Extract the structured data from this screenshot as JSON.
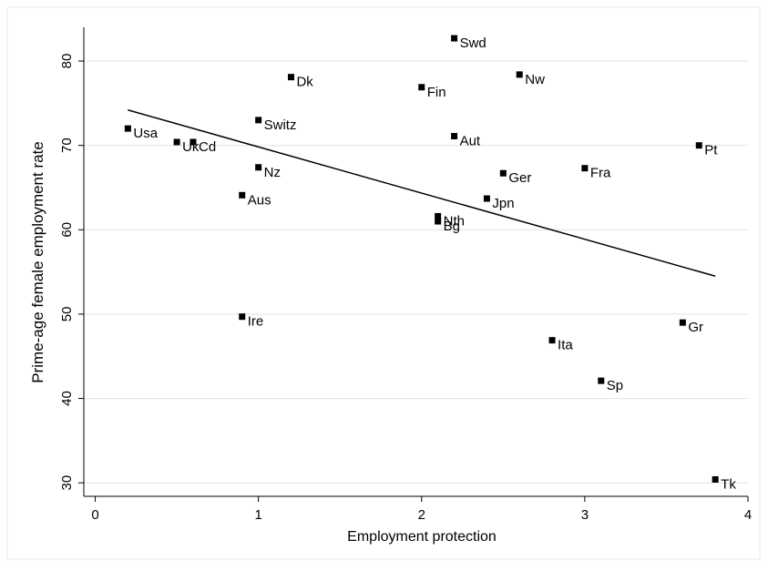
{
  "chart_data": {
    "type": "scatter",
    "x_label": "Employment protection",
    "y_label": "Prime-age female employment rate",
    "labels": [
      "Usa",
      "Uk",
      "Cd",
      "Dk",
      "Switz",
      "Nz",
      "Aus",
      "Ire",
      "Swd",
      "Fin",
      "Nw",
      "Aut",
      "Ger",
      "Fra",
      "Pt",
      "Jpn",
      "Nth",
      "Bg",
      "Ita",
      "Gr",
      "Sp",
      "Tk"
    ],
    "x": [
      0.2,
      0.5,
      0.6,
      1.2,
      1.0,
      1.0,
      0.9,
      0.9,
      2.2,
      2.0,
      2.6,
      2.2,
      2.5,
      3.0,
      3.7,
      2.4,
      2.1,
      2.1,
      2.8,
      3.6,
      3.1,
      3.8
    ],
    "values": [
      72.0,
      70.4,
      70.4,
      78.1,
      73.0,
      67.4,
      64.1,
      49.7,
      82.7,
      76.9,
      78.4,
      71.1,
      66.7,
      67.3,
      70.0,
      63.7,
      61.6,
      61.0,
      46.9,
      49.0,
      42.1,
      30.4
    ],
    "color": "#000000",
    "fit": {
      "x": [
        0.2,
        3.8
      ],
      "y": [
        74.2,
        54.5
      ]
    },
    "xlim": [
      -0.07,
      4.0
    ],
    "xticks": [
      0,
      1,
      2,
      3,
      4
    ],
    "ylim": [
      28.4,
      84.0
    ],
    "yticks": [
      30,
      40,
      50,
      60,
      70,
      80
    ],
    "grid": true
  }
}
